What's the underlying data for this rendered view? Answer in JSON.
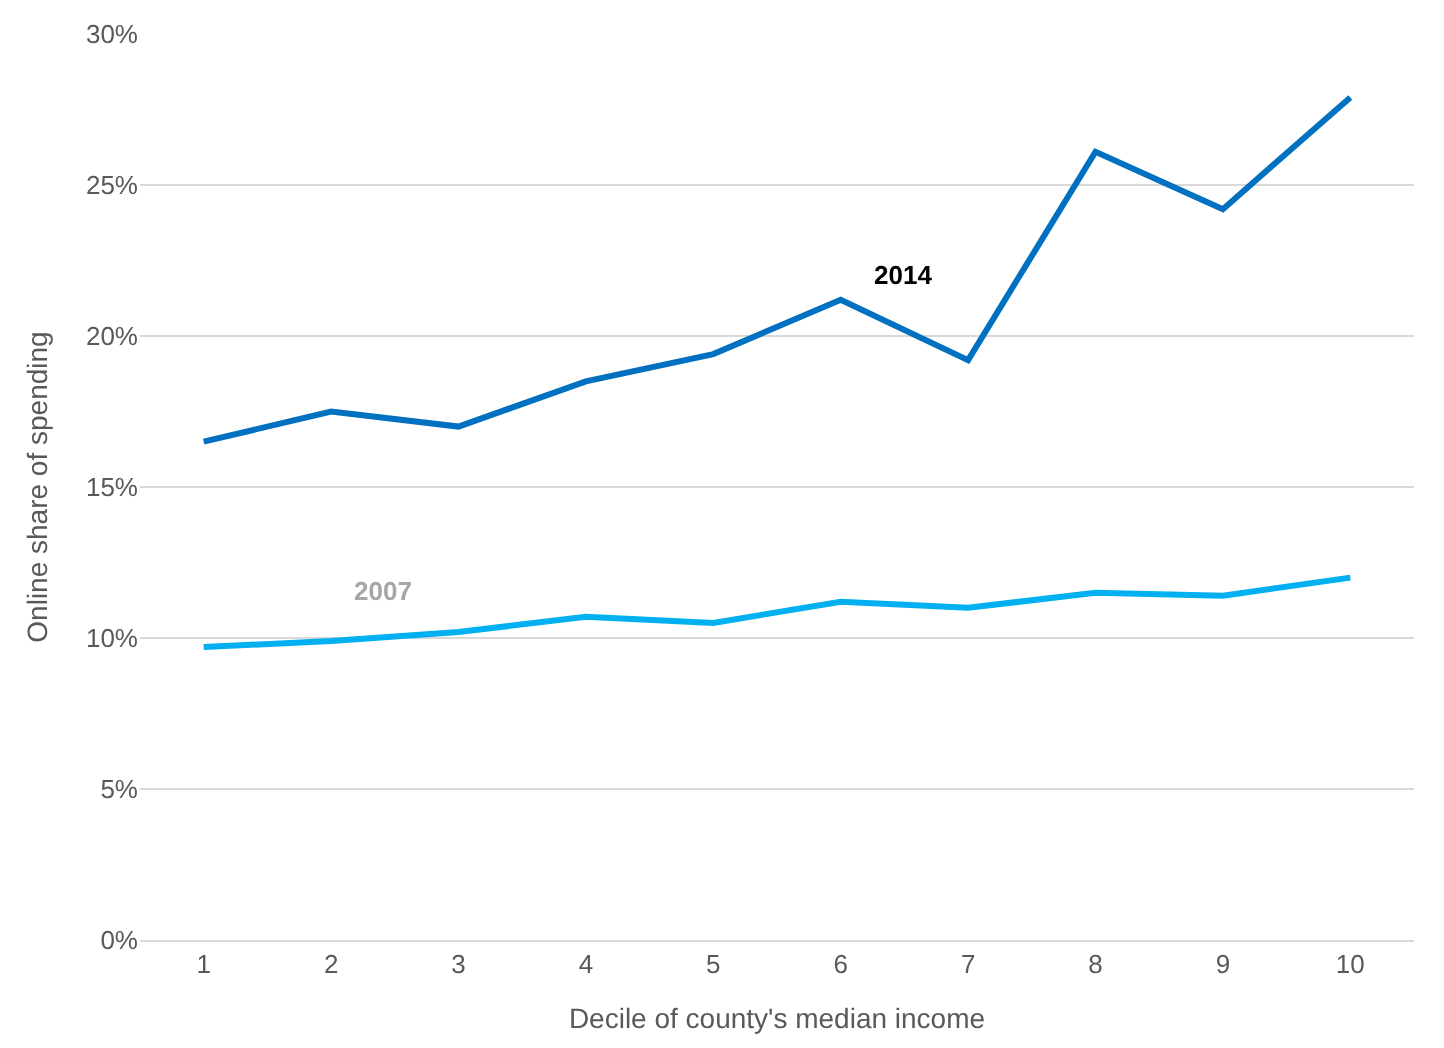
{
  "chart_data": {
    "type": "line",
    "xlabel": "Decile of county's median income",
    "ylabel": "Online share of spending",
    "categories": [
      "1",
      "2",
      "3",
      "4",
      "5",
      "6",
      "7",
      "8",
      "9",
      "10"
    ],
    "series": [
      {
        "name": "2014",
        "color": "#0070c0",
        "values": [
          16.5,
          17.5,
          17.0,
          18.5,
          19.4,
          21.2,
          19.2,
          26.1,
          24.2,
          27.9
        ]
      },
      {
        "name": "2007",
        "color": "#00b0f0",
        "values": [
          9.7,
          9.9,
          10.2,
          10.7,
          10.5,
          11.2,
          11.0,
          11.5,
          11.4,
          12.0
        ]
      }
    ],
    "ylim": [
      0,
      30
    ],
    "yticks": [
      {
        "value": 0,
        "label": "0%"
      },
      {
        "value": 5,
        "label": "5%"
      },
      {
        "value": 10,
        "label": "10%"
      },
      {
        "value": 15,
        "label": "15%"
      },
      {
        "value": 20,
        "label": "20%"
      },
      {
        "value": 25,
        "label": "25%"
      },
      {
        "value": 30,
        "label": "30%"
      }
    ],
    "grid": "y",
    "legend": false,
    "marker": "none",
    "line_style": "solid"
  }
}
